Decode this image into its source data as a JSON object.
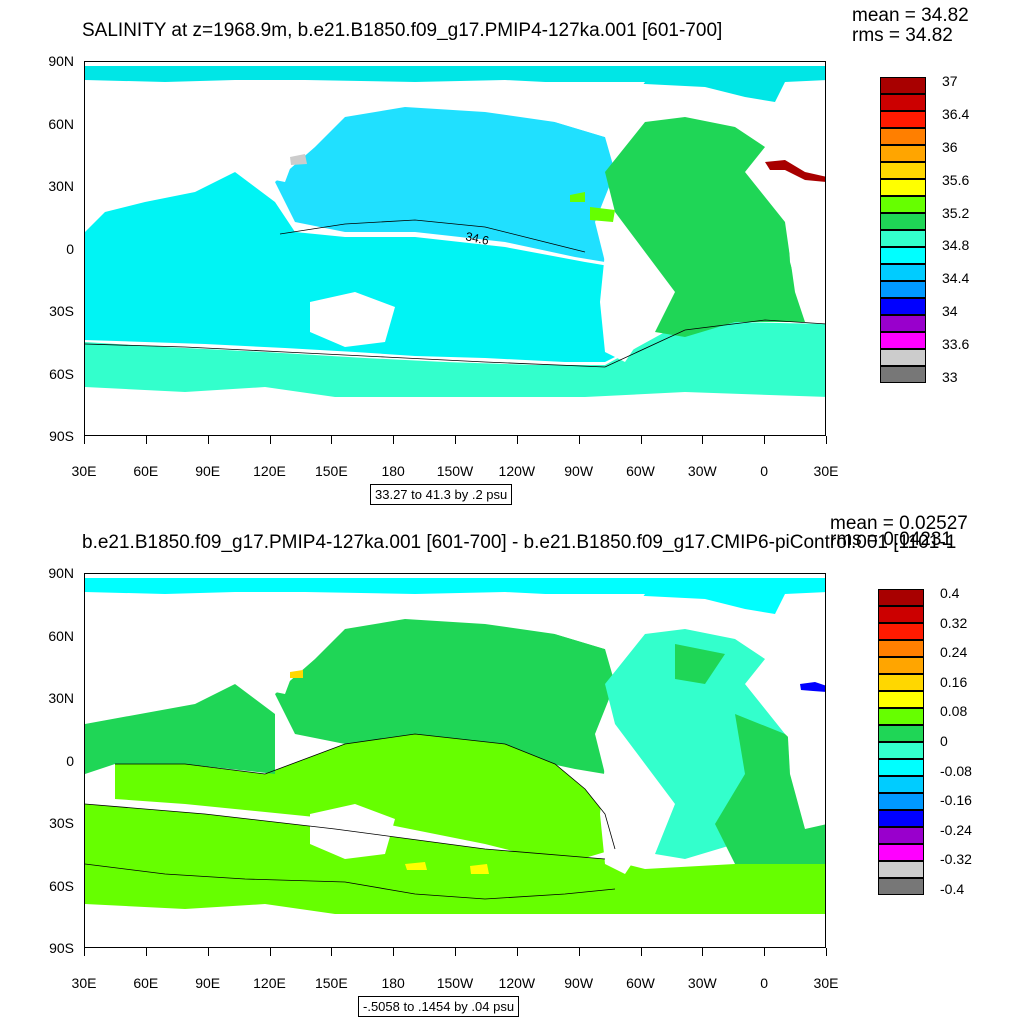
{
  "panels": [
    {
      "title": "SALINITY at z=1968.9m, b.e21.B1850.f09_g17.PMIP4-127ka.001 [601-700]",
      "mean": "mean = 34.82",
      "rms": "rms = 34.82",
      "range": "33.27 to 41.3 by .2 psu",
      "contour_label": "34.6",
      "colorbar": {
        "colors": [
          "#a80000",
          "#cc0000",
          "#ff1a00",
          "#ff7f00",
          "#ffa500",
          "#ffd700",
          "#ffff00",
          "#66ff00",
          "#1fd656",
          "#33ffcc",
          "#00ffff",
          "#00ccff",
          "#0099ff",
          "#0000ff",
          "#9900cc",
          "#ff00ff",
          "#cccccc",
          "#777777"
        ],
        "labels": [
          "37",
          "36.4",
          "36",
          "35.6",
          "35.2",
          "34.8",
          "34.4",
          "34",
          "33.6",
          "33"
        ]
      }
    },
    {
      "title": "b.e21.B1850.f09_g17.PMIP4-127ka.001 [601-700] - b.e21.B1850.f09_g17.CMIP6-piControl.001 [1101-1",
      "mean": "mean = 0.02527",
      "rms": "rms = 0.04231",
      "range": "-.5058 to .1454 by .04 psu",
      "colorbar": {
        "colors": [
          "#a80000",
          "#cc0000",
          "#ff1a00",
          "#ff7f00",
          "#ffa500",
          "#ffd700",
          "#ffff00",
          "#66ff00",
          "#1fd656",
          "#33ffcc",
          "#00ffff",
          "#00ccff",
          "#0099ff",
          "#0000ff",
          "#9900cc",
          "#ff00ff",
          "#cccccc",
          "#777777"
        ],
        "labels": [
          "0.4",
          "0.32",
          "0.24",
          "0.16",
          "0.08",
          "0",
          "-0.08",
          "-0.16",
          "-0.24",
          "-0.32",
          "-0.4"
        ]
      }
    }
  ],
  "lat_labels": [
    "90N",
    "60N",
    "30N",
    "0",
    "30S",
    "60S",
    "90S"
  ],
  "lon_labels": [
    "30E",
    "60E",
    "90E",
    "120E",
    "150E",
    "180",
    "150W",
    "120W",
    "90W",
    "60W",
    "30W",
    "0",
    "30E"
  ],
  "colors": {
    "ocean_top": "#00e6e6",
    "ocean_top_pacific": "#00ccff",
    "atlantic_top": "#1fd656",
    "southern_top": "#33ffcc",
    "ocean_bottom_green": "#66ff00",
    "ocean_bottom_mid": "#1fd656",
    "atlantic_bottom": "#33ffcc",
    "land": "#ffffff"
  }
}
